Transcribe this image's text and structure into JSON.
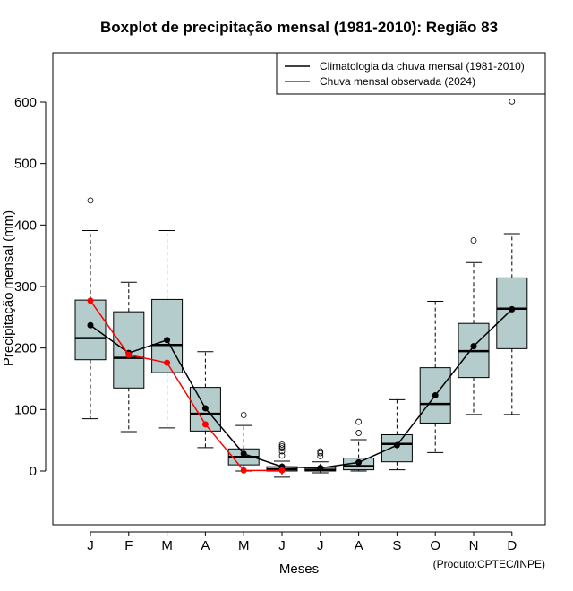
{
  "chart_data": {
    "type": "boxplot",
    "title": "Boxplot de precipitação mensal (1981-2010): Região 83",
    "xlabel": "Meses",
    "ylabel": "Precipitação mensal (mm)",
    "ylim": [
      -88,
      686
    ],
    "yticks": [
      0,
      100,
      200,
      300,
      400,
      500,
      600
    ],
    "categories": [
      "J",
      "F",
      "M",
      "A",
      "M",
      "J",
      "J",
      "A",
      "S",
      "O",
      "N",
      "D"
    ],
    "boxes": [
      {
        "min": 85,
        "q1": 181,
        "median": 216,
        "q3": 278,
        "max": 391,
        "outliers": [
          440
        ]
      },
      {
        "min": 64,
        "q1": 135,
        "median": 184,
        "q3": 259,
        "max": 307,
        "outliers": []
      },
      {
        "min": 70,
        "q1": 160,
        "median": 205,
        "q3": 279,
        "max": 391,
        "outliers": []
      },
      {
        "min": 38,
        "q1": 65,
        "median": 93,
        "q3": 136,
        "max": 194,
        "outliers": []
      },
      {
        "min": 0,
        "q1": 10,
        "median": 23,
        "q3": 36,
        "max": 74,
        "outliers": [
          91
        ]
      },
      {
        "min": -10,
        "q1": 0,
        "median": 3,
        "q3": 7,
        "max": 16,
        "outliers": [
          25,
          32,
          37,
          40,
          43
        ]
      },
      {
        "min": -3,
        "q1": 0,
        "median": 2,
        "q3": 6,
        "max": 15,
        "outliers": [
          24,
          29,
          32
        ]
      },
      {
        "min": 0,
        "q1": 2,
        "median": 8,
        "q3": 21,
        "max": 51,
        "outliers": [
          62,
          80
        ]
      },
      {
        "min": 2,
        "q1": 15,
        "median": 44,
        "q3": 59,
        "max": 116,
        "outliers": []
      },
      {
        "min": 30,
        "q1": 78,
        "median": 109,
        "q3": 168,
        "max": 276,
        "outliers": []
      },
      {
        "min": 92,
        "q1": 152,
        "median": 195,
        "q3": 240,
        "max": 339,
        "outliers": [
          375
        ]
      },
      {
        "min": 92,
        "q1": 199,
        "median": 264,
        "q3": 314,
        "max": 386,
        "outliers": [
          601
        ]
      }
    ],
    "series": [
      {
        "name": "Climatologia da chuva mensal (1981-2010)",
        "color": "#000000",
        "values": [
          237,
          192,
          213,
          102,
          28,
          7,
          5,
          14,
          42,
          123,
          203,
          263
        ]
      },
      {
        "name": "Chuva mensal observada (2024)",
        "color": "#ff0000",
        "values": [
          277,
          189,
          176,
          76,
          1,
          1,
          null,
          null,
          null,
          null,
          null,
          null
        ]
      }
    ],
    "legend_position": "top-right",
    "credit": "(Produto:CPTEC/INPE)",
    "box_fill": "#b4cccc"
  }
}
